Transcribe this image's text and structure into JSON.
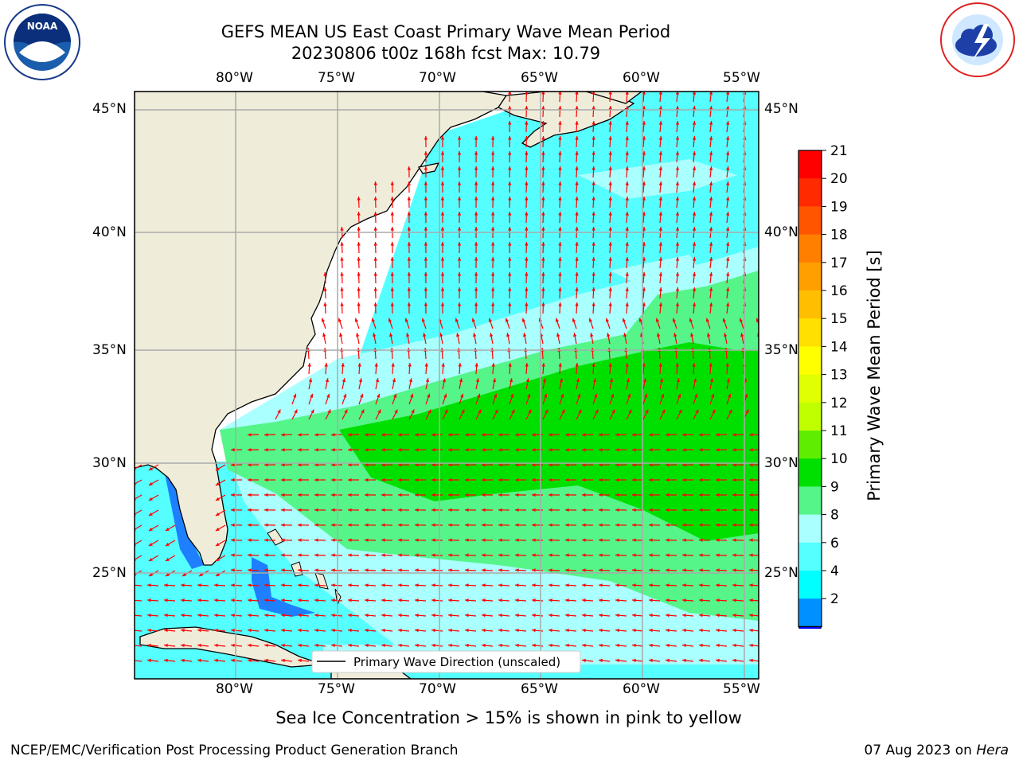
{
  "header": {
    "title_line1": "GEFS MEAN US East Coast Primary Wave Mean Period",
    "title_line2": "20230806 t00z 168h fcst   Max: 10.79"
  },
  "logos": {
    "left": {
      "name": "noaa-logo",
      "text": "NOAA"
    },
    "right": {
      "name": "nws-logo"
    }
  },
  "map": {
    "lon_labels": [
      "80°W",
      "75°W",
      "70°W",
      "65°W",
      "60°W",
      "55°W"
    ],
    "lat_labels": [
      "45°N",
      "40°N",
      "35°N",
      "30°N",
      "25°N"
    ],
    "legend_text": "Primary Wave Direction (unscaled)",
    "land_color": "#efedda",
    "arrow_color": "#ff0000"
  },
  "colorbar": {
    "label": "Primary Wave Mean Period [s]",
    "ticks": [
      "21",
      "20",
      "19",
      "18",
      "17",
      "16",
      "15",
      "14",
      "13",
      "12",
      "11",
      "10",
      "9",
      "8",
      "6",
      "4",
      "2"
    ],
    "colors": [
      "#ff0000",
      "#ff2a00",
      "#ff5500",
      "#ff7f00",
      "#ff9f00",
      "#ffbf00",
      "#ffe000",
      "#ffff00",
      "#e0ff00",
      "#c0ff00",
      "#60ee00",
      "#00e000",
      "#55f58a",
      "#aaffff",
      "#55ffff",
      "#00ffff",
      "#0090ff"
    ],
    "extend_color": "#0000ff"
  },
  "footer": {
    "note": "Sea Ice Concentration > 15% is shown in pink to yellow",
    "left": "NCEP/EMC/Verification Post Processing Product Generation Branch",
    "date": "07 Aug 2023 on",
    "machine": "Hera"
  }
}
